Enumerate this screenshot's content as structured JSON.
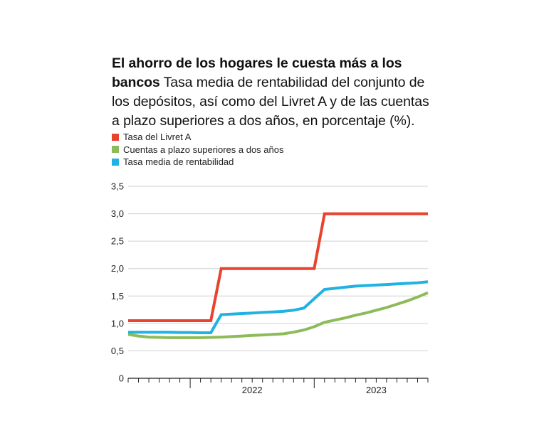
{
  "header": {
    "title": "El ahorro de los hogares le cuesta más a los bancos",
    "subtitle": "Tasa media de rentabilidad del conjunto de los depósitos, así como del Livret A y de las cuentas a plazo superiores a dos años, en porcentaje (%)."
  },
  "chart_data": {
    "type": "line",
    "title": "El ahorro de los hogares le cuesta más a los bancos",
    "subtitle": "Tasa media de rentabilidad del conjunto de los depósitos, así como del Livret A y de las cuentas a plazo superiores a dos años, en porcentaje (%).",
    "xlabel": "",
    "ylabel": "",
    "x": [
      "2021-07",
      "2021-08",
      "2021-09",
      "2021-10",
      "2021-11",
      "2021-12",
      "2022-01",
      "2022-02",
      "2022-03",
      "2022-04",
      "2022-05",
      "2022-06",
      "2022-07",
      "2022-08",
      "2022-09",
      "2022-10",
      "2022-11",
      "2022-12",
      "2023-01",
      "2023-02",
      "2023-03",
      "2023-04",
      "2023-05",
      "2023-06",
      "2023-07",
      "2023-08",
      "2023-09",
      "2023-10",
      "2023-11",
      "2023-12"
    ],
    "x_tick_labels": [
      "2022",
      "2023"
    ],
    "ylim": [
      0,
      3.5
    ],
    "y_ticks": [
      0,
      0.5,
      1.0,
      1.5,
      2.0,
      2.5,
      3.0,
      3.5
    ],
    "y_tick_labels": [
      "0",
      "0,5",
      "1,0",
      "1,5",
      "2,0",
      "2,5",
      "3,0",
      "3,5"
    ],
    "grid": true,
    "legend_position": "top-left",
    "series": [
      {
        "name": "Tasa del Livret A",
        "color": "#e8432e",
        "values": [
          1.05,
          1.05,
          1.05,
          1.05,
          1.05,
          1.05,
          1.05,
          1.05,
          1.05,
          2.0,
          2.0,
          2.0,
          2.0,
          2.0,
          2.0,
          2.0,
          2.0,
          2.0,
          2.0,
          3.0,
          3.0,
          3.0,
          3.0,
          3.0,
          3.0,
          3.0,
          3.0,
          3.0,
          3.0,
          3.0
        ]
      },
      {
        "name": "Cuentas a plazo superiores a dos años",
        "color": "#8dbb5a",
        "values": [
          0.8,
          0.77,
          0.75,
          0.745,
          0.74,
          0.74,
          0.74,
          0.74,
          0.745,
          0.75,
          0.76,
          0.77,
          0.78,
          0.79,
          0.8,
          0.81,
          0.84,
          0.88,
          0.94,
          1.02,
          1.06,
          1.1,
          1.15,
          1.19,
          1.24,
          1.29,
          1.35,
          1.41,
          1.48,
          1.56
        ]
      },
      {
        "name": "Tasa media de rentabilidad",
        "color": "#1fb2e3",
        "values": [
          0.84,
          0.84,
          0.84,
          0.84,
          0.84,
          0.835,
          0.835,
          0.83,
          0.83,
          1.16,
          1.17,
          1.18,
          1.19,
          1.2,
          1.21,
          1.22,
          1.24,
          1.28,
          1.45,
          1.62,
          1.64,
          1.66,
          1.68,
          1.69,
          1.7,
          1.71,
          1.72,
          1.73,
          1.74,
          1.76
        ]
      }
    ]
  }
}
